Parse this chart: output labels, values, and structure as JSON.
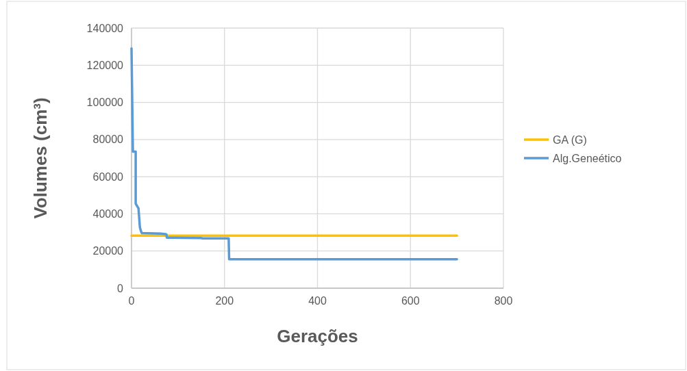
{
  "chart_data": {
    "type": "line",
    "xlabel": "Gerações",
    "ylabel": "Volumes (cm³)",
    "xlim": [
      0,
      800
    ],
    "xticks": [
      0,
      200,
      400,
      600,
      800
    ],
    "ylim": [
      0,
      140000
    ],
    "yticks": [
      0,
      20000,
      40000,
      60000,
      80000,
      100000,
      120000,
      140000
    ],
    "grid": true,
    "legend": "right",
    "line_style": "solid",
    "marker": "none",
    "series": [
      {
        "name": "GA (G)",
        "color": "#ffc000",
        "x": [
          0,
          700
        ],
        "values": [
          28300,
          28300
        ]
      },
      {
        "name": "Alg.Geneético",
        "color": "#5b9bd5",
        "x": [
          0,
          3,
          9,
          9,
          15,
          18,
          20,
          22,
          62,
          63,
          75,
          76,
          150,
          153,
          209,
          210,
          700
        ],
        "values": [
          129000,
          73500,
          73500,
          45500,
          43000,
          32800,
          31000,
          29700,
          29400,
          29400,
          29000,
          27200,
          27000,
          26800,
          26800,
          15600,
          15600
        ]
      }
    ]
  }
}
